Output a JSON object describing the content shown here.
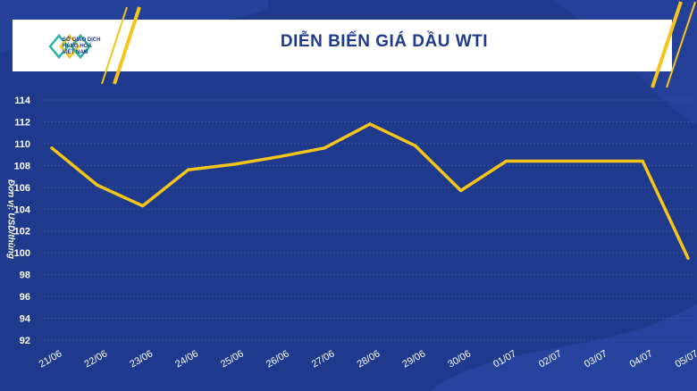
{
  "header": {
    "logo_lines": [
      "SỞ GIAO DỊCH",
      "HÀNG HÓA",
      "VIỆT NAM"
    ],
    "title": "DIỄN BIẾN GIÁ DẦU WTI"
  },
  "colors": {
    "background": "#1f3a8c",
    "line": "#f5c518",
    "grid": "#4c66b0",
    "text": "#ffffff",
    "accent": "#f5c518"
  },
  "chart_data": {
    "type": "line",
    "title": "DIỄN BIẾN GIÁ DẦU WTI",
    "ylabel": "Đơn vị: USD/thùng",
    "xlabel": "",
    "categories": [
      "21/06",
      "22/06",
      "23/06",
      "24/06",
      "25/06",
      "26/06",
      "27/06",
      "28/06",
      "29/06",
      "30/06",
      "01/07",
      "02/07",
      "03/07",
      "04/07",
      "05/07"
    ],
    "series": [
      {
        "name": "",
        "values": [
          109.6,
          106.2,
          104.3,
          107.6,
          108.1,
          108.8,
          109.6,
          111.8,
          109.8,
          105.7,
          108.4,
          108.4,
          108.4,
          108.4,
          99.5
        ]
      }
    ],
    "yticks": [
      92,
      94,
      96,
      98,
      100,
      102,
      104,
      106,
      108,
      110,
      112,
      114
    ],
    "ylim": [
      92,
      114
    ],
    "grid": true,
    "legend": "none"
  }
}
